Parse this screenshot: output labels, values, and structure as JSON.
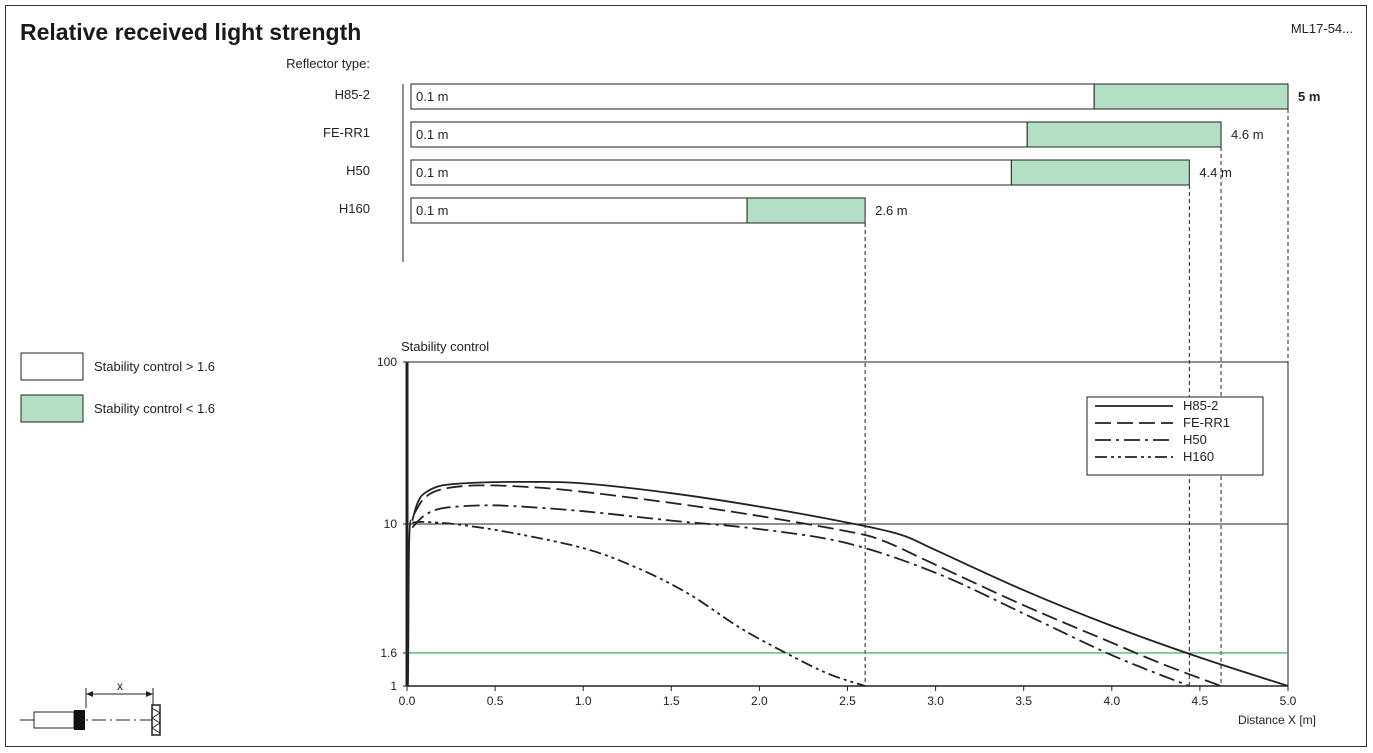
{
  "header": {
    "title": "Relative received light strength",
    "doc_ref": "ML17-54..."
  },
  "colors": {
    "green_fill": "#b3dfc4",
    "threshold_line": "#2ea45a",
    "ink": "#222222"
  },
  "legend_boxes": [
    {
      "label": "Stability control > 1.6",
      "fill": "#ffffff"
    },
    {
      "label": "Stability control < 1.6",
      "fill": "#b3dfc4"
    }
  ],
  "range_chart": {
    "reflector_header": "Reflector type:",
    "rows": [
      {
        "name": "H85-2",
        "start_label": "0.1 m",
        "green_start": 3.9,
        "end": 5.0,
        "end_label": "5 m",
        "bold_end": true
      },
      {
        "name": "FE-RR1",
        "start_label": "0.1 m",
        "green_start": 3.52,
        "end": 4.62,
        "end_label": "4.6 m",
        "bold_end": false
      },
      {
        "name": "H50",
        "start_label": "0.1 m",
        "green_start": 3.43,
        "end": 4.44,
        "end_label": "4.4 m",
        "bold_end": false
      },
      {
        "name": "H160",
        "start_label": "0.1 m",
        "green_start": 1.93,
        "end": 2.6,
        "end_label": "2.6 m",
        "bold_end": false
      }
    ]
  },
  "chart_data": {
    "type": "line",
    "ylabel": "Stability control",
    "xlabel": "Distance X [m]",
    "xlim": [
      0,
      5
    ],
    "ylim": [
      1,
      100
    ],
    "y_scale": "log",
    "x_ticks": [
      "0.0",
      "0.5",
      "1.0",
      "1.5",
      "2.0",
      "2.5",
      "3.0",
      "3.5",
      "4.0",
      "4.5",
      "5.0"
    ],
    "y_ticks": [
      {
        "value": 100,
        "label": "100"
      },
      {
        "value": 10,
        "label": "10"
      },
      {
        "value": 1.6,
        "label": "1.6"
      },
      {
        "value": 1,
        "label": "1"
      }
    ],
    "threshold": 1.6,
    "legend_position": "top-right",
    "series": [
      {
        "name": "H85-2",
        "style": "solid",
        "x": [
          0.03,
          0.06,
          0.1,
          0.2,
          0.4,
          0.7,
          1.0,
          1.5,
          2.0,
          2.5,
          2.8,
          3.0,
          3.5,
          4.0,
          4.5,
          5.0
        ],
        "y": [
          10.5,
          13.5,
          15.5,
          17.3,
          18.0,
          18.2,
          17.8,
          15.5,
          12.8,
          10.2,
          8.6,
          6.9,
          3.9,
          2.35,
          1.5,
          1.0
        ]
      },
      {
        "name": "FE-RR1",
        "style": "dash",
        "x": [
          0.04,
          0.1,
          0.2,
          0.4,
          0.7,
          1.0,
          1.5,
          2.0,
          2.5,
          2.7,
          3.0,
          3.5,
          4.0,
          4.3,
          4.62
        ],
        "y": [
          11.5,
          14.5,
          16.4,
          17.3,
          16.9,
          15.8,
          13.5,
          11.2,
          9.0,
          7.9,
          5.6,
          3.15,
          1.85,
          1.35,
          1.0
        ]
      },
      {
        "name": "H50",
        "style": "dashdot",
        "x": [
          0.03,
          0.1,
          0.2,
          0.4,
          0.6,
          1.0,
          1.5,
          2.0,
          2.5,
          3.0,
          3.5,
          4.0,
          4.44
        ],
        "y": [
          9.5,
          11.3,
          12.5,
          13.0,
          12.9,
          12.0,
          10.5,
          9.3,
          7.6,
          5.0,
          2.8,
          1.55,
          1.0
        ]
      },
      {
        "name": "H160",
        "style": "dashdotdot",
        "x": [
          0.03,
          0.1,
          0.3,
          0.6,
          1.0,
          1.3,
          1.6,
          1.9,
          2.2,
          2.4,
          2.6
        ],
        "y": [
          10.2,
          10.3,
          9.9,
          8.8,
          7.1,
          5.4,
          3.7,
          2.25,
          1.5,
          1.18,
          1.0
        ]
      }
    ]
  },
  "sensor_diagram": {
    "label": "x"
  }
}
